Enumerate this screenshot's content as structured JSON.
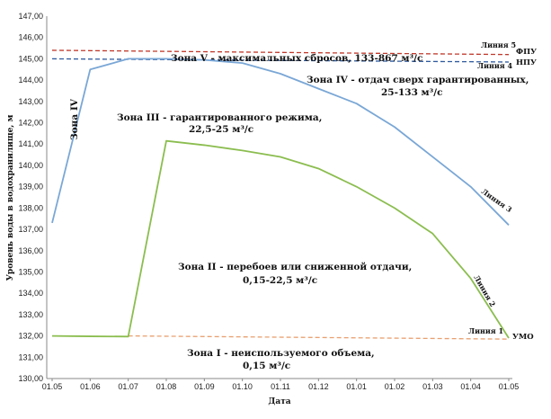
{
  "chart_data": {
    "type": "line",
    "xlabel": "Дата",
    "ylabel": "Уровень воды в водохранилище, м",
    "categories": [
      "01.05",
      "01.06",
      "01.07",
      "01.08",
      "01.09",
      "01.10",
      "01.11",
      "01.12",
      "01.01",
      "01.02",
      "01.03",
      "01.04",
      "01.05"
    ],
    "ylim": [
      130,
      147
    ],
    "yticks": [
      "130,00",
      "131,00",
      "132,00",
      "133,00",
      "134,00",
      "135,00",
      "136,00",
      "137,00",
      "138,00",
      "139,00",
      "140,00",
      "141,00",
      "142,00",
      "143,00",
      "144,00",
      "145,00",
      "146,00",
      "147,00"
    ],
    "grid": false,
    "series": [
      {
        "name": "Линия 3",
        "color": "#7aa7d6",
        "values": [
          137.3,
          144.5,
          145.0,
          145.0,
          144.95,
          144.8,
          144.3,
          143.6,
          142.9,
          141.8,
          140.4,
          139.0,
          137.2
        ]
      },
      {
        "name": "Линия 2",
        "color": "#8bbd4f",
        "values": [
          132.0,
          131.98,
          131.97,
          141.15,
          140.95,
          140.7,
          140.4,
          139.85,
          139.0,
          138.0,
          136.8,
          134.7,
          131.9
        ]
      }
    ],
    "reference_lines": [
      {
        "name": "Линия 5",
        "side_label": "ФПУ",
        "color": "#c0392b",
        "from": 145.4,
        "to": 145.2
      },
      {
        "name": "Линия 4",
        "side_label": "НПУ",
        "color": "#2e5a9e",
        "from": 145.0,
        "to": 144.85
      },
      {
        "name": "Линия 1",
        "side_label": "УМО",
        "color": "#e8a070",
        "from": 132.0,
        "to": 131.85,
        "start_index": 2
      }
    ],
    "annotations": {
      "zone_iv_vertical": "Зона IV",
      "zone_v": "Зона V - максимальных сбросов, 133-867 м³/с",
      "zone_iv_line1": "Зона IV - отдач сверх гарантированных,",
      "zone_iv_line2": "25-133 м³/с",
      "zone_iii_line1": "Зона III - гарантированного режима,",
      "zone_iii_line2": "22,5-25 м³/с",
      "zone_ii_line1": "Зона II - перебоев или сниженной отдачи,",
      "zone_ii_line2": "0,15-22,5 м³/с",
      "zone_i_line1": "Зона I - неиспользуемого объема,",
      "zone_i_line2": "0,15 м³/с"
    }
  }
}
